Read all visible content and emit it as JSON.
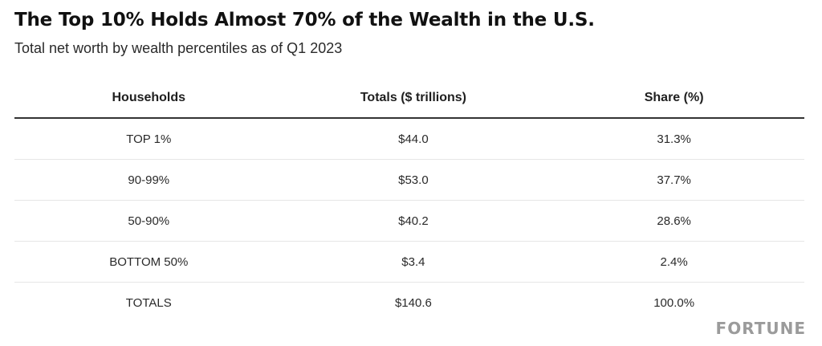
{
  "chart_data": {
    "type": "table",
    "title": "The Top 10% Holds Almost 70% of the Wealth in the U.S.",
    "subtitle": "Total net worth by wealth percentiles as of Q1 2023",
    "columns": [
      "Households",
      "Totals ($ trillions)",
      "Share (%)"
    ],
    "rows": [
      {
        "households": "TOP 1%",
        "total": "$44.0",
        "share": "31.3%"
      },
      {
        "households": "90-99%",
        "total": "$53.0",
        "share": "37.7%"
      },
      {
        "households": "50-90%",
        "total": "$40.2",
        "share": "28.6%"
      },
      {
        "households": "BOTTOM 50%",
        "total": "$3.4",
        "share": "2.4%"
      },
      {
        "households": "TOTALS",
        "total": "$140.6",
        "share": "100.0%"
      }
    ]
  },
  "brand": "FORTUNE"
}
